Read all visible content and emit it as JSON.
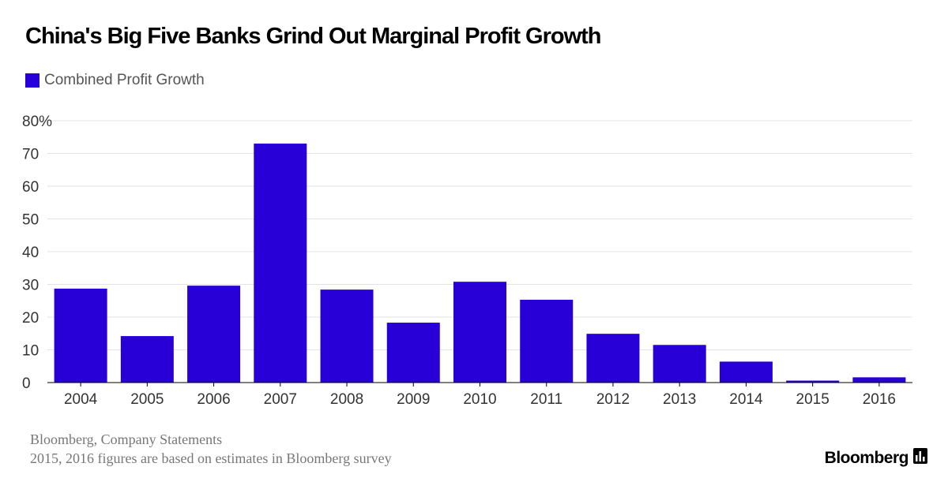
{
  "chart_data": {
    "type": "bar",
    "title": "China's Big Five Banks Grind Out Marginal Profit Growth",
    "series": [
      {
        "name": "Combined Profit Growth",
        "color": "#2800d7",
        "values": [
          28.7,
          14.2,
          29.6,
          73.0,
          28.4,
          18.3,
          30.8,
          25.3,
          14.9,
          11.5,
          6.4,
          0.6,
          1.6
        ]
      }
    ],
    "categories": [
      "2004",
      "2005",
      "2006",
      "2007",
      "2008",
      "2009",
      "2010",
      "2011",
      "2012",
      "2013",
      "2014",
      "2015",
      "2016"
    ],
    "ylim": [
      0,
      80
    ],
    "yticks": [
      0,
      10,
      20,
      30,
      40,
      50,
      60,
      70,
      80
    ],
    "ytick_labels": [
      "0",
      "10",
      "20",
      "30",
      "40",
      "50",
      "60",
      "70",
      "80%"
    ],
    "xlabel": "",
    "ylabel": "",
    "grid": true,
    "legend_position": "top-left"
  },
  "source": {
    "line1": "Bloomberg, Company Statements",
    "line2": "2015, 2016 figures are based on estimates in Bloomberg survey"
  },
  "brand": {
    "name": "Bloomberg",
    "icon": "bloomberg-chart-icon"
  }
}
